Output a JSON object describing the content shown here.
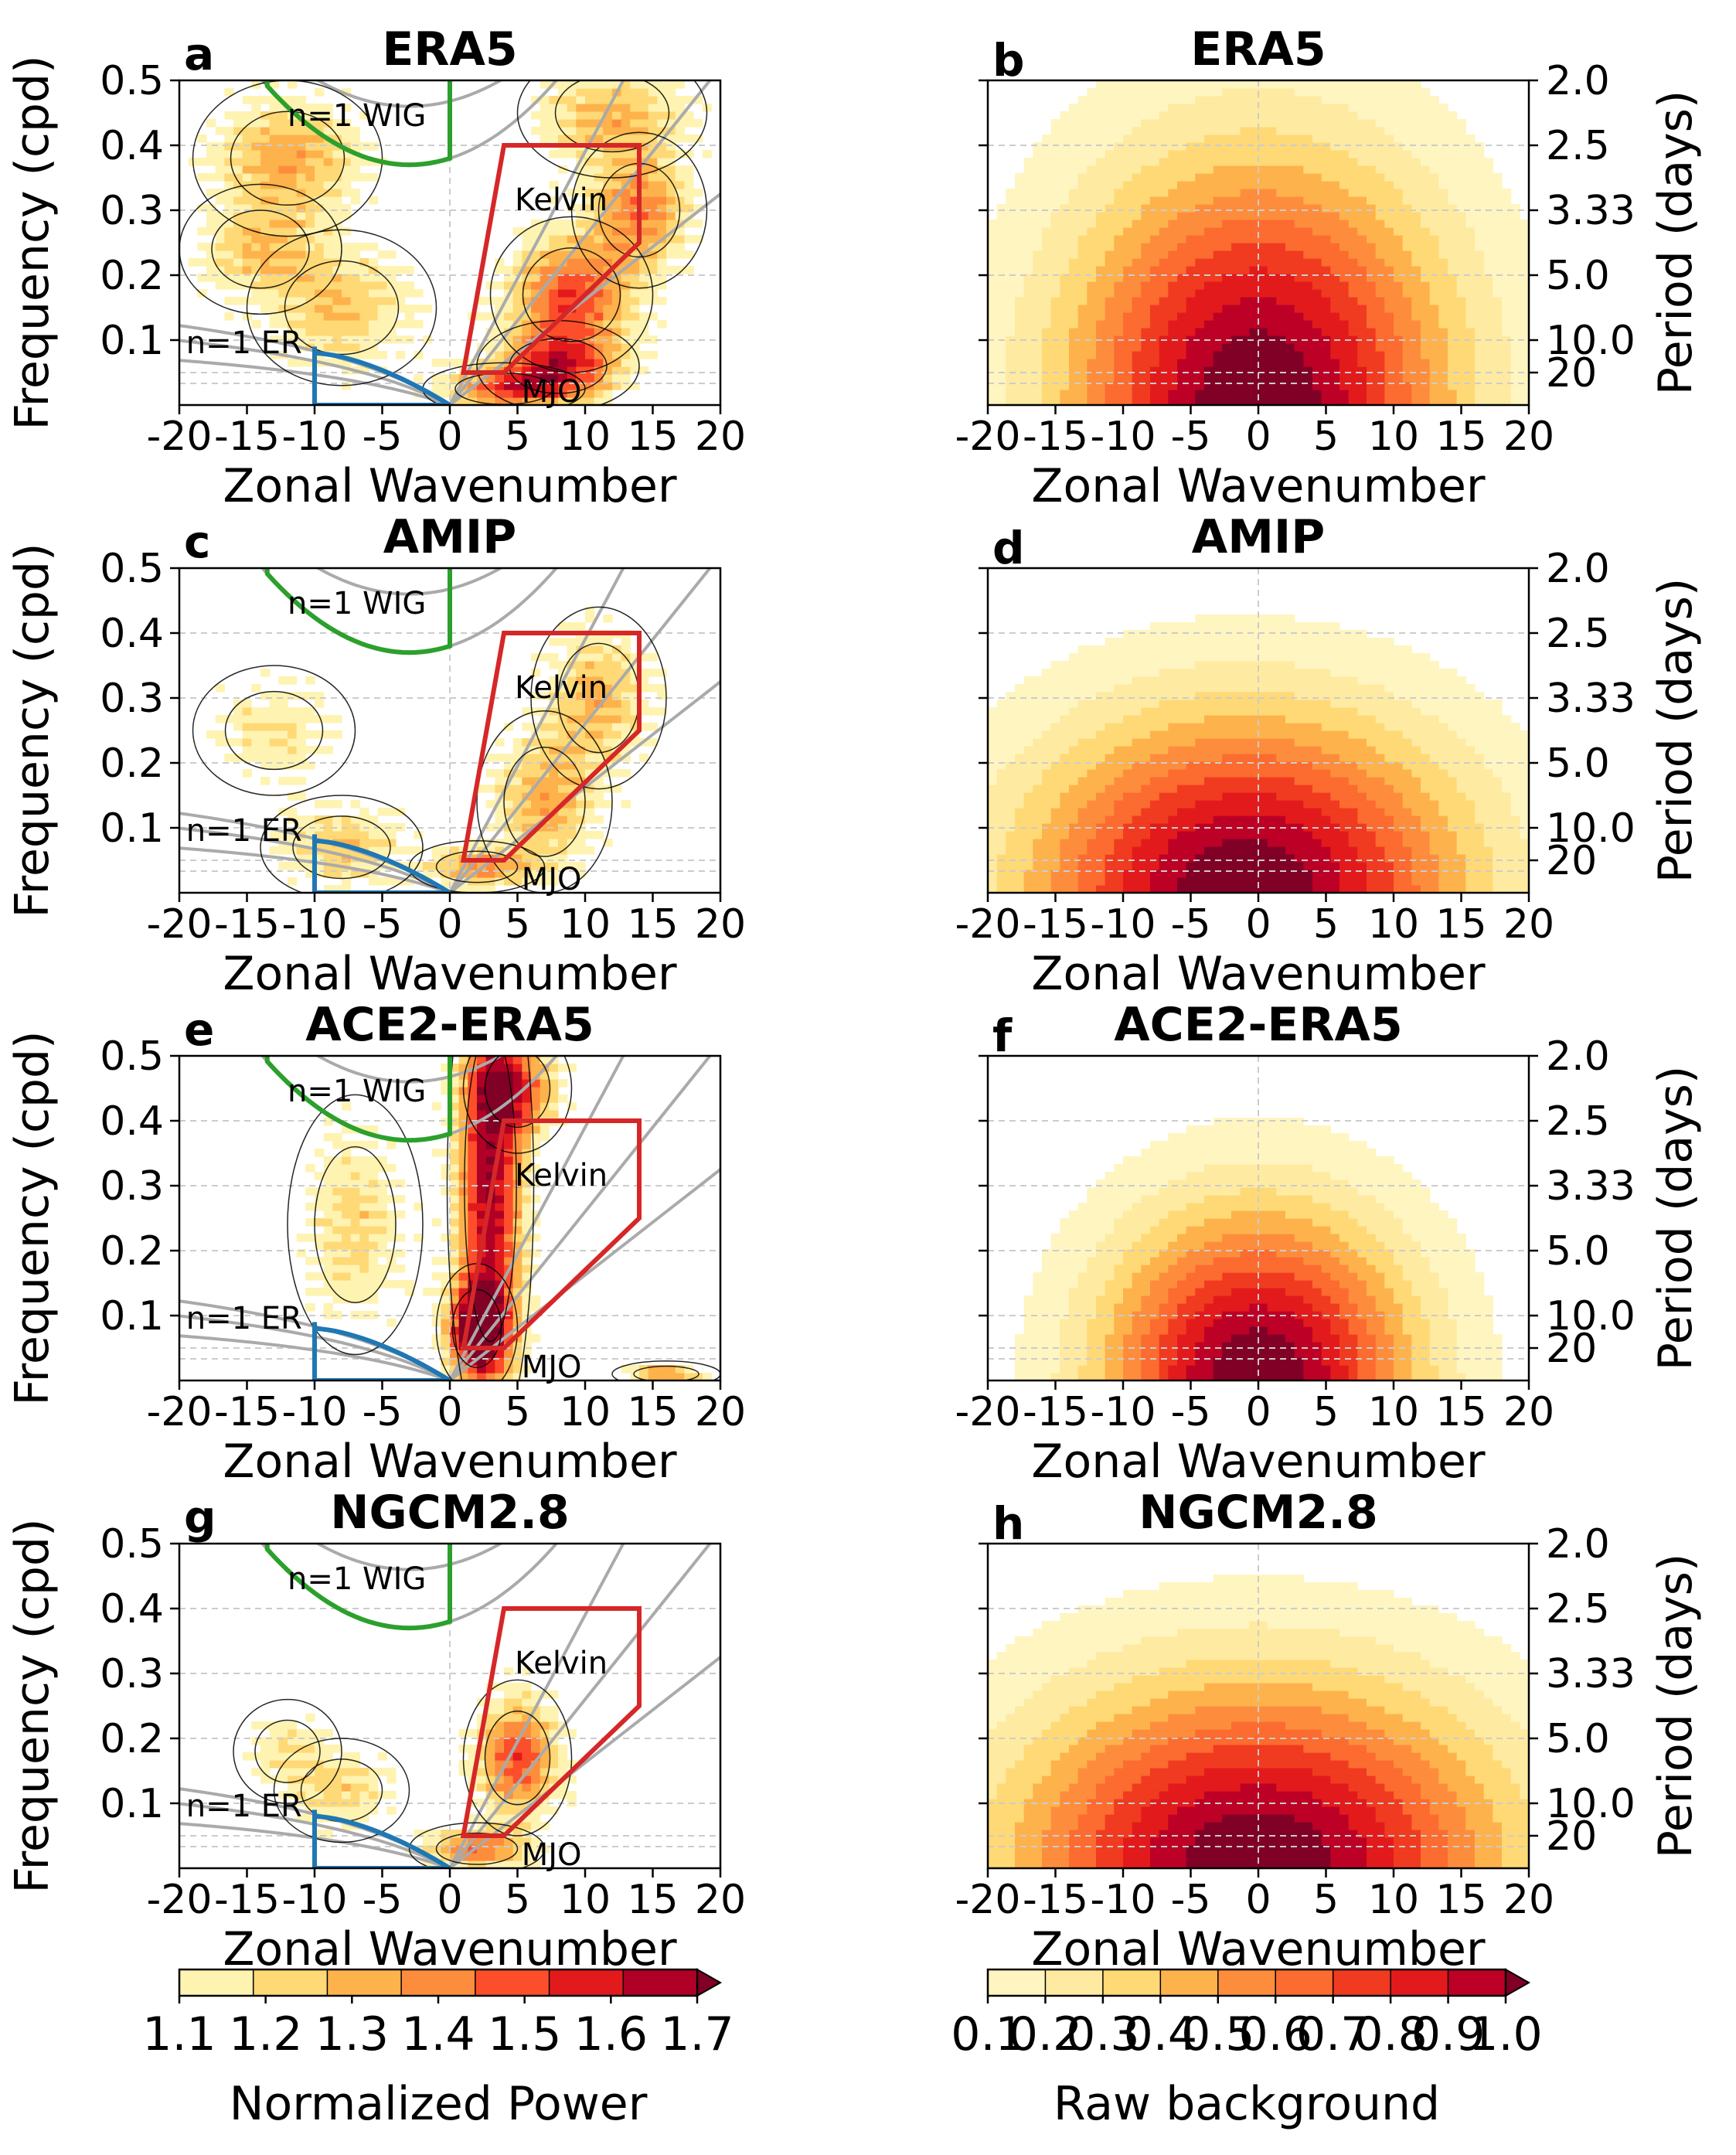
{
  "figure": {
    "panels": [
      {
        "letter": "a",
        "title": "ERA5",
        "kind": "normalized"
      },
      {
        "letter": "b",
        "title": "ERA5",
        "kind": "background"
      },
      {
        "letter": "c",
        "title": "AMIP",
        "kind": "normalized"
      },
      {
        "letter": "d",
        "title": "AMIP",
        "kind": "background"
      },
      {
        "letter": "e",
        "title": "ACE2-ERA5",
        "kind": "normalized"
      },
      {
        "letter": "f",
        "title": "ACE2-ERA5",
        "kind": "background"
      },
      {
        "letter": "g",
        "title": "NGCM2.8",
        "kind": "normalized"
      },
      {
        "letter": "h",
        "title": "NGCM2.8",
        "kind": "background"
      }
    ],
    "axis_labels": {
      "xlabel": "Zonal Wavenumber",
      "ylabel": "Frequency (cpd)",
      "ylabel_right": "Period (days)"
    },
    "x_ticks": [
      "-20",
      "-15",
      "-10",
      "-5",
      "0",
      "5",
      "10",
      "15",
      "20"
    ],
    "y_ticks": [
      "0.1",
      "0.2",
      "0.3",
      "0.4",
      "0.5"
    ],
    "period_ticks": [
      "2.0",
      "2.5",
      "3.33",
      "5.0",
      "10.0",
      "20"
    ],
    "wave_labels": [
      "n=1 WIG",
      "Kelvin",
      "n=1 ER",
      "MJO"
    ],
    "colorbar_left": {
      "label": "Normalized Power",
      "ticks": [
        "1.1",
        "1.2",
        "1.3",
        "1.4",
        "1.5",
        "1.6",
        "1.7"
      ],
      "colors": [
        "#fff3b2",
        "#fed976",
        "#feb24c",
        "#fd8d3c",
        "#fc4e2a",
        "#e31a1c",
        "#b10026",
        "#800026"
      ]
    },
    "colorbar_right": {
      "label": "Raw background",
      "ticks": [
        "0.1",
        "0.2",
        "0.3",
        "0.4",
        "0.5",
        "0.6",
        "0.7",
        "0.8",
        "0.9",
        "1.0"
      ],
      "colors": [
        "#fff5c0",
        "#feeaa0",
        "#fed976",
        "#feb24c",
        "#fd8d3c",
        "#fc6b2f",
        "#f03b20",
        "#e31a1c",
        "#bd0026",
        "#800026"
      ]
    },
    "region_colors": {
      "kelvin": "#d62728",
      "wig": "#2ca02c",
      "er": "#1f77b4",
      "dispersion": "#aaaaaa"
    }
  },
  "chart_data": [
    {
      "type": "heatmap",
      "panel": "a",
      "title": "ERA5",
      "xlabel": "Zonal Wavenumber",
      "ylabel": "Frequency (cpd)",
      "xlim": [
        -20,
        20
      ],
      "ylim": [
        0.0,
        0.5
      ],
      "blobs": [
        {
          "k": 8,
          "f": 0.06,
          "sk": 3.0,
          "sf": 0.035,
          "a": 0.75
        },
        {
          "k": 9,
          "f": 0.17,
          "sk": 3.0,
          "sf": 0.06,
          "a": 0.7
        },
        {
          "k": 14,
          "f": 0.3,
          "sk": 2.5,
          "sf": 0.06,
          "a": 0.55
        },
        {
          "k": 4,
          "f": 0.025,
          "sk": 3.0,
          "sf": 0.02,
          "a": 0.6
        },
        {
          "k": -12,
          "f": 0.38,
          "sk": 3.5,
          "sf": 0.06,
          "a": 0.45
        },
        {
          "k": -14,
          "f": 0.24,
          "sk": 3.0,
          "sf": 0.05,
          "a": 0.35
        },
        {
          "k": -8,
          "f": 0.15,
          "sk": 3.5,
          "sf": 0.06,
          "a": 0.35
        },
        {
          "k": 12,
          "f": 0.45,
          "sk": 3.5,
          "sf": 0.05,
          "a": 0.4
        }
      ]
    },
    {
      "type": "heatmap",
      "panel": "b",
      "title": "ERA5",
      "xlabel": "Zonal Wavenumber",
      "ylabel": "Period (days)",
      "xlim": [
        -20,
        20
      ],
      "ylim": [
        0.0,
        0.5
      ],
      "peak_k": 0,
      "spread_k": 10.0,
      "spread_f": 0.26,
      "skew": 0.0
    },
    {
      "type": "heatmap",
      "panel": "c",
      "title": "AMIP",
      "xlabel": "Zonal Wavenumber",
      "ylabel": "Frequency (cpd)",
      "xlim": [
        -20,
        20
      ],
      "ylim": [
        0.0,
        0.5
      ],
      "blobs": [
        {
          "k": 7,
          "f": 0.14,
          "sk": 2.5,
          "sf": 0.07,
          "a": 0.45
        },
        {
          "k": 11,
          "f": 0.3,
          "sk": 2.5,
          "sf": 0.07,
          "a": 0.4
        },
        {
          "k": 2,
          "f": 0.04,
          "sk": 2.5,
          "sf": 0.02,
          "a": 0.5
        },
        {
          "k": -8,
          "f": 0.07,
          "sk": 3.0,
          "sf": 0.04,
          "a": 0.35
        },
        {
          "k": -13,
          "f": 0.25,
          "sk": 3.0,
          "sf": 0.05,
          "a": 0.25
        }
      ]
    },
    {
      "type": "heatmap",
      "panel": "d",
      "title": "AMIP",
      "xlabel": "Zonal Wavenumber",
      "ylabel": "Period (days)",
      "xlim": [
        -20,
        20
      ],
      "ylim": [
        0.0,
        0.5
      ],
      "peak_k": -1,
      "spread_k": 13.0,
      "spread_f": 0.19,
      "skew": 0.15
    },
    {
      "type": "heatmap",
      "panel": "e",
      "title": "ACE2-ERA5",
      "xlabel": "Zonal Wavenumber",
      "ylabel": "Frequency (cpd)",
      "xlim": [
        -20,
        20
      ],
      "ylim": [
        0.0,
        0.5
      ],
      "blobs": [
        {
          "k": 3,
          "f": 0.3,
          "sk": 1.6,
          "sf": 0.2,
          "a": 0.95
        },
        {
          "k": 2,
          "f": 0.08,
          "sk": 1.5,
          "sf": 0.05,
          "a": 1.0
        },
        {
          "k": 5,
          "f": 0.45,
          "sk": 2.0,
          "sf": 0.05,
          "a": 0.6
        },
        {
          "k": -7,
          "f": 0.24,
          "sk": 2.5,
          "sf": 0.1,
          "a": 0.3
        },
        {
          "k": 16,
          "f": 0.01,
          "sk": 2.0,
          "sf": 0.01,
          "a": 0.5
        }
      ]
    },
    {
      "type": "heatmap",
      "panel": "f",
      "title": "ACE2-ERA5",
      "xlabel": "Zonal Wavenumber",
      "ylabel": "Period (days)",
      "xlim": [
        -20,
        20
      ],
      "ylim": [
        0.0,
        0.5
      ],
      "peak_k": 0,
      "spread_k": 8.0,
      "spread_f": 0.18,
      "skew": 0.0
    },
    {
      "type": "heatmap",
      "panel": "g",
      "title": "NGCM2.8",
      "xlabel": "Zonal Wavenumber",
      "ylabel": "Frequency (cpd)",
      "xlim": [
        -20,
        20
      ],
      "ylim": [
        0.0,
        0.5
      ],
      "blobs": [
        {
          "k": 5,
          "f": 0.17,
          "sk": 2.0,
          "sf": 0.06,
          "a": 0.7
        },
        {
          "k": 2,
          "f": 0.03,
          "sk": 2.5,
          "sf": 0.02,
          "a": 0.6
        },
        {
          "k": -8,
          "f": 0.12,
          "sk": 2.5,
          "sf": 0.04,
          "a": 0.3
        },
        {
          "k": -12,
          "f": 0.18,
          "sk": 2.0,
          "sf": 0.04,
          "a": 0.25
        }
      ]
    },
    {
      "type": "heatmap",
      "panel": "h",
      "title": "NGCM2.8",
      "xlabel": "Zonal Wavenumber",
      "ylabel": "Period (days)",
      "xlim": [
        -20,
        20
      ],
      "ylim": [
        0.0,
        0.5
      ],
      "peak_k": 0,
      "spread_k": 14.0,
      "spread_f": 0.2,
      "skew": 0.1
    }
  ]
}
